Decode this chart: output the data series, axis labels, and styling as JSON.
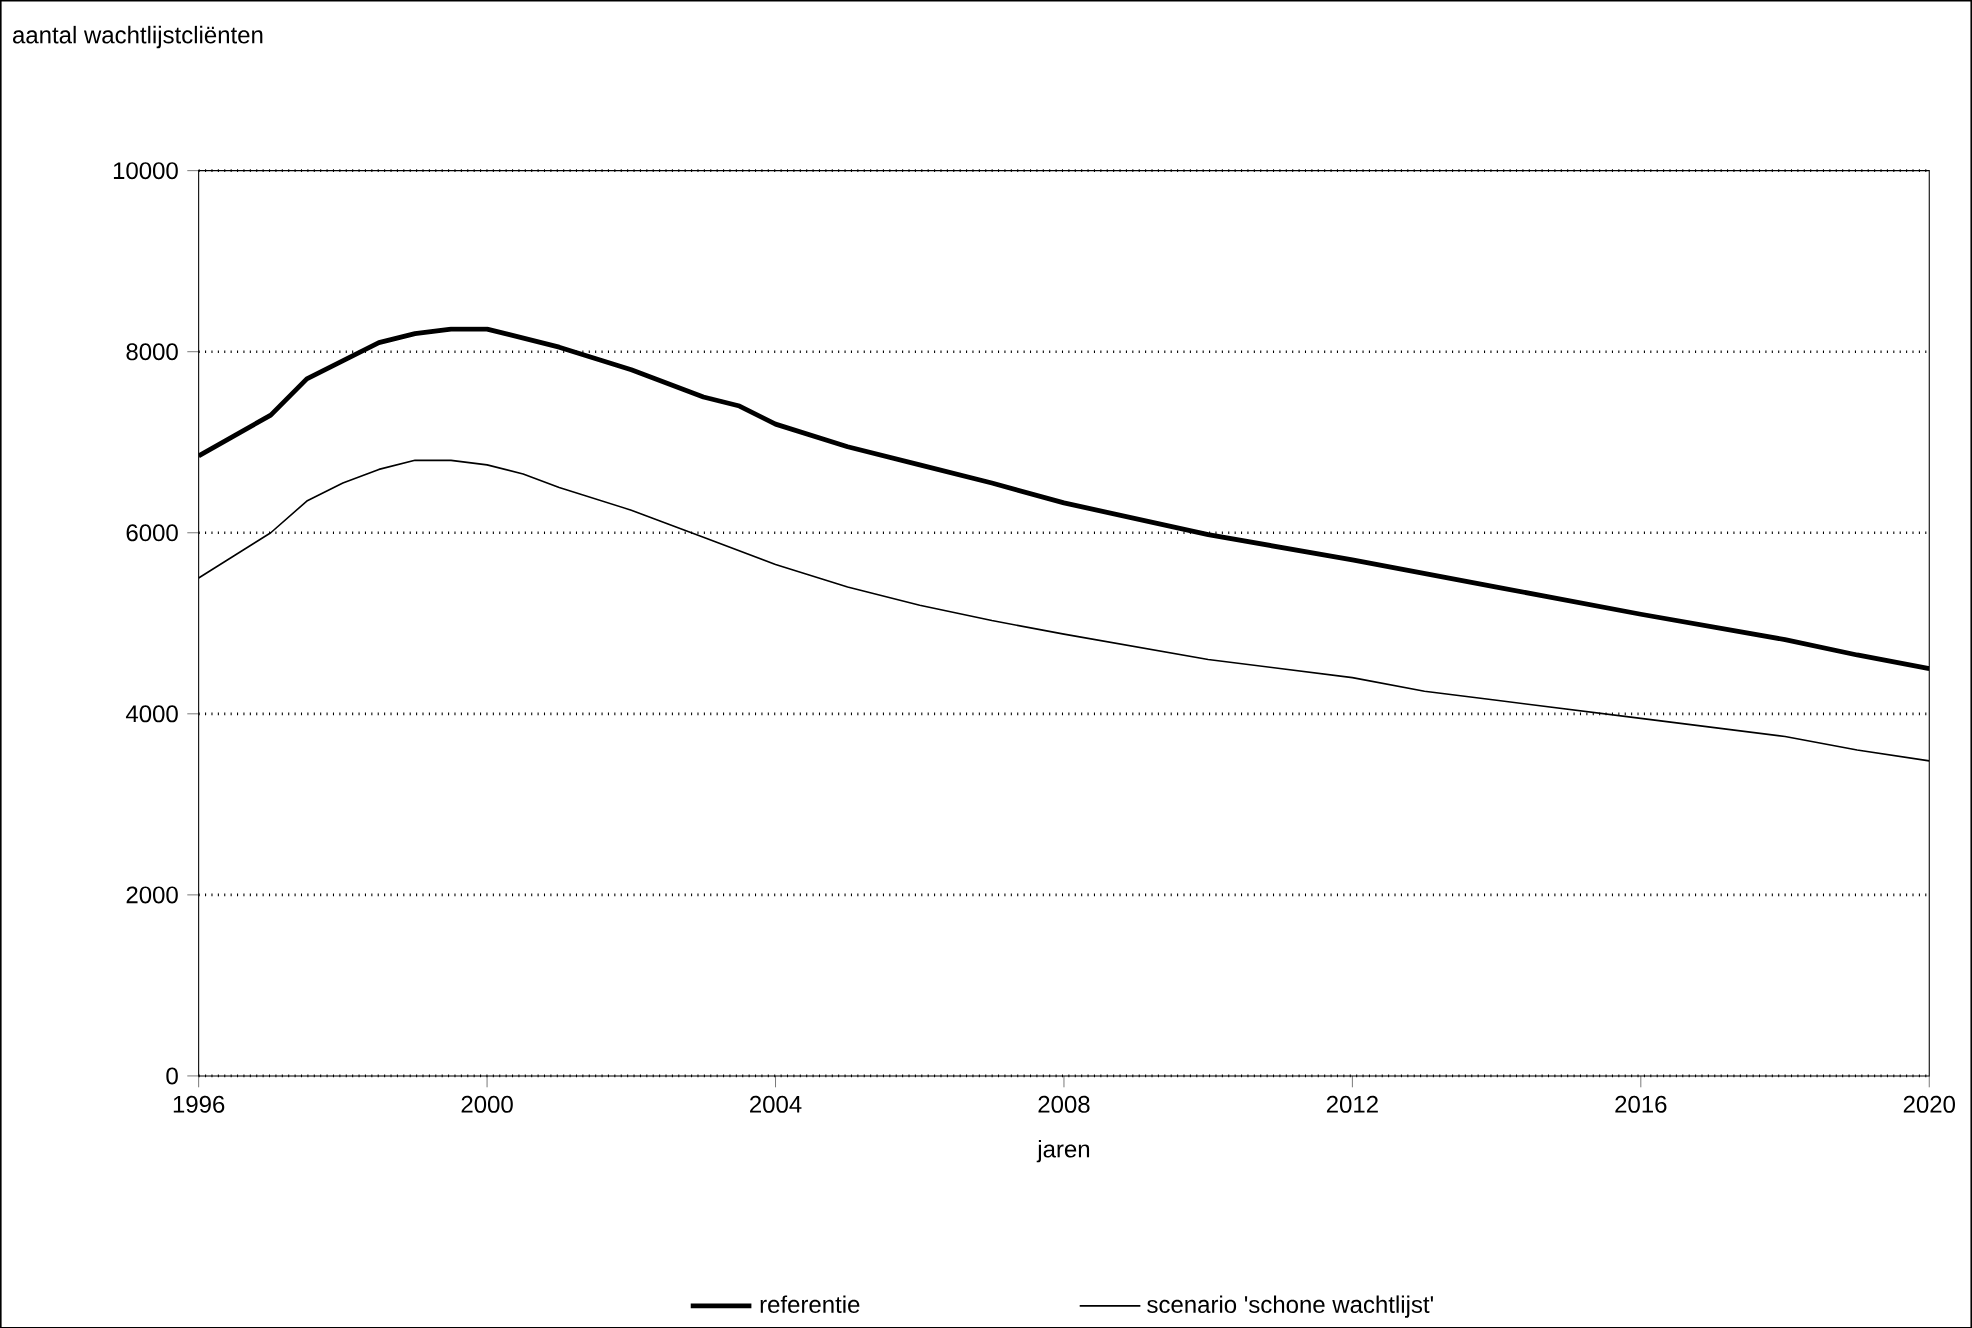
{
  "chart_data": {
    "type": "line",
    "ylabel": "aantal wachtlijstcliënten",
    "xlabel": "jaren",
    "xlim": [
      1996,
      2020
    ],
    "ylim": [
      0,
      10000
    ],
    "xticks": [
      1996,
      2000,
      2004,
      2008,
      2012,
      2016,
      2020
    ],
    "yticks": [
      0,
      2000,
      4000,
      6000,
      8000,
      10000
    ],
    "grid": "y",
    "legend": "bottom",
    "marker": "none",
    "series": [
      {
        "name": "referentie",
        "color": "#000000",
        "x": [
          1996,
          1997,
          1997.5,
          1998.5,
          1999,
          1999.5,
          2000,
          2001,
          2002,
          2003,
          2003.5,
          2004,
          2005,
          2006,
          2007,
          2008,
          2010,
          2012,
          2014,
          2016,
          2018,
          2019,
          2020
        ],
        "values": [
          6850,
          7300,
          7700,
          8100,
          8200,
          8250,
          8250,
          8050,
          7800,
          7500,
          7400,
          7200,
          6950,
          6750,
          6550,
          6330,
          5980,
          5700,
          5400,
          5100,
          4820,
          4650,
          4500
        ]
      },
      {
        "name": "scenario 'schone wachtlijst'",
        "color": "#000000",
        "x": [
          1996,
          1997,
          1997.5,
          1998,
          1998.5,
          1999,
          1999.5,
          2000,
          2000.5,
          2001,
          2002,
          2003,
          2003.5,
          2004,
          2005,
          2006,
          2007,
          2008,
          2010,
          2012,
          2013,
          2014,
          2016,
          2018,
          2019,
          2020
        ],
        "values": [
          5500,
          6000,
          6350,
          6550,
          6700,
          6800,
          6800,
          6750,
          6650,
          6500,
          6250,
          5950,
          5800,
          5650,
          5400,
          5200,
          5030,
          4880,
          4600,
          4400,
          4250,
          4150,
          3950,
          3750,
          3600,
          3480
        ]
      }
    ]
  }
}
